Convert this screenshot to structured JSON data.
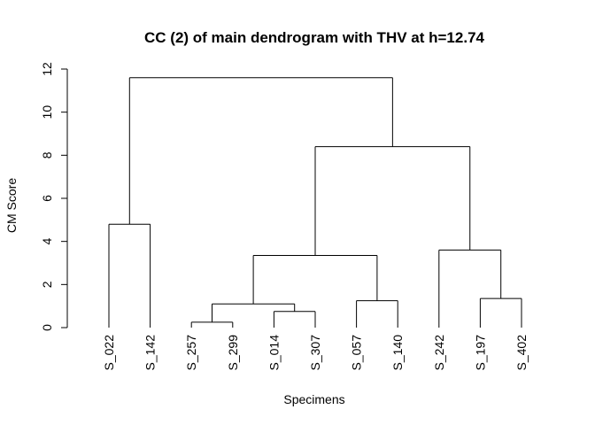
{
  "chart_data": {
    "type": "dendrogram",
    "title": "CC (2) of main dendrogram with THV at h=12.74",
    "xlabel": "Specimens",
    "ylabel": "CM Score",
    "ylim": [
      0,
      12
    ],
    "yticks": [
      0,
      2,
      4,
      6,
      8,
      10,
      12
    ],
    "leaves": [
      "S_022",
      "S_142",
      "S_257",
      "S_299",
      "S_014",
      "S_307",
      "S_057",
      "S_140",
      "S_242",
      "S_197",
      "S_402"
    ],
    "merges": [
      {
        "left": "S_257",
        "right": "S_299",
        "height": 0.25
      },
      {
        "left": "S_014",
        "right": "S_307",
        "height": 0.75
      },
      {
        "left": "S_257+S_299",
        "right": "S_014+S_307",
        "height": 1.1
      },
      {
        "left": "S_057",
        "right": "S_140",
        "height": 1.25
      },
      {
        "left": "S_197",
        "right": "S_402",
        "height": 1.35
      },
      {
        "left": "S_257..S_307",
        "right": "S_057+S_140",
        "height": 3.35
      },
      {
        "left": "S_242",
        "right": "S_197+S_402",
        "height": 3.6
      },
      {
        "left": "S_022",
        "right": "S_142",
        "height": 4.8
      },
      {
        "left": "S_257..S_140",
        "right": "S_242..S_402",
        "height": 8.4
      },
      {
        "left": "S_022+S_142",
        "right": "S_257..S_402",
        "height": 11.6
      }
    ]
  }
}
